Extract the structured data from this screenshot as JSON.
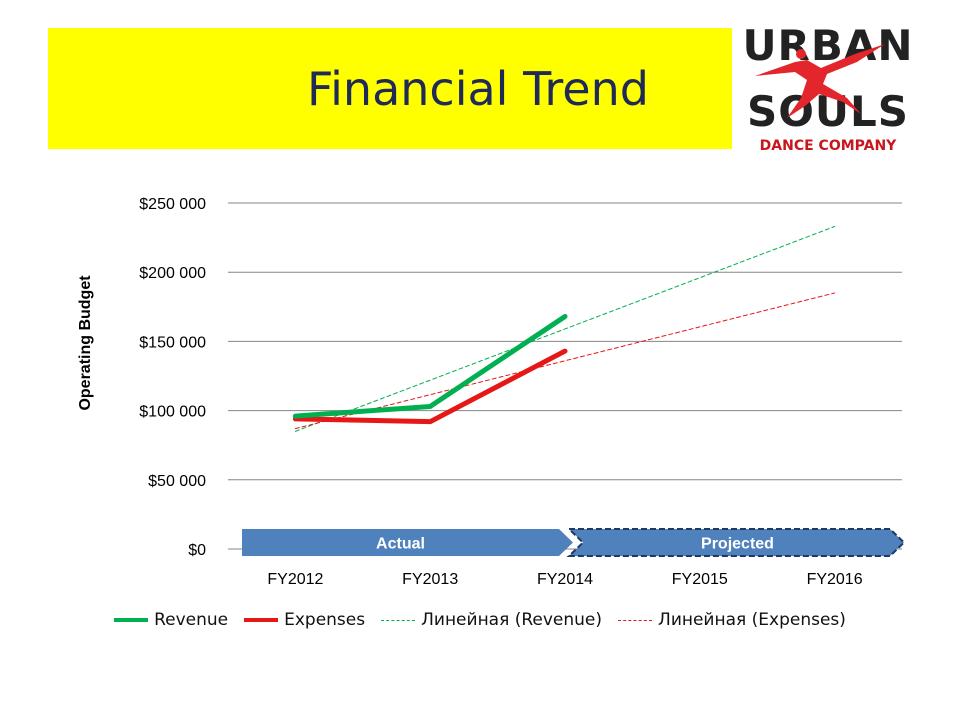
{
  "title": "Financial Trend",
  "logo": {
    "line1": "URBAN",
    "line2": "SOULS",
    "line3": "DANCE COMPANY"
  },
  "colors": {
    "title_band": "#ffff00",
    "revenue": "#00b050",
    "expenses": "#e61717",
    "phase_fill": "#4f81bd"
  },
  "chart_data": {
    "type": "line",
    "ylabel": "Operating Budget",
    "categories": [
      "FY2012",
      "FY2013",
      "FY2014",
      "FY2015",
      "FY2016"
    ],
    "ylim": [
      0,
      250000
    ],
    "yticks": [
      {
        "value": 250000,
        "label": "$250 000"
      },
      {
        "value": 200000,
        "label": "$200 000"
      },
      {
        "value": 150000,
        "label": "$150 000"
      },
      {
        "value": 100000,
        "label": "$100 000"
      },
      {
        "value": 50000,
        "label": "$50 000"
      },
      {
        "value": 0,
        "label": "$0"
      }
    ],
    "grid": true,
    "series": [
      {
        "name": "Revenue",
        "key": "revenue",
        "style": "solid",
        "values": [
          96000,
          103000,
          168000,
          null,
          null
        ]
      },
      {
        "name": "Expenses",
        "key": "expenses",
        "style": "solid",
        "values": [
          94000,
          92000,
          143000,
          null,
          null
        ]
      },
      {
        "name": "Линейная (Revenue)",
        "key": "revenue",
        "style": "dashed",
        "values": [
          85000,
          122000,
          159000,
          196000,
          233000
        ]
      },
      {
        "name": "Линейная (Expenses)",
        "key": "expenses",
        "style": "dashed",
        "values": [
          87000,
          111500,
          136000,
          160500,
          185000
        ]
      }
    ],
    "phases": [
      {
        "label": "Actual",
        "start": "FY2012",
        "end": "FY2014"
      },
      {
        "label": "Projected",
        "start": "FY2014",
        "end": "FY2016"
      }
    ],
    "legend_position": "bottom"
  }
}
